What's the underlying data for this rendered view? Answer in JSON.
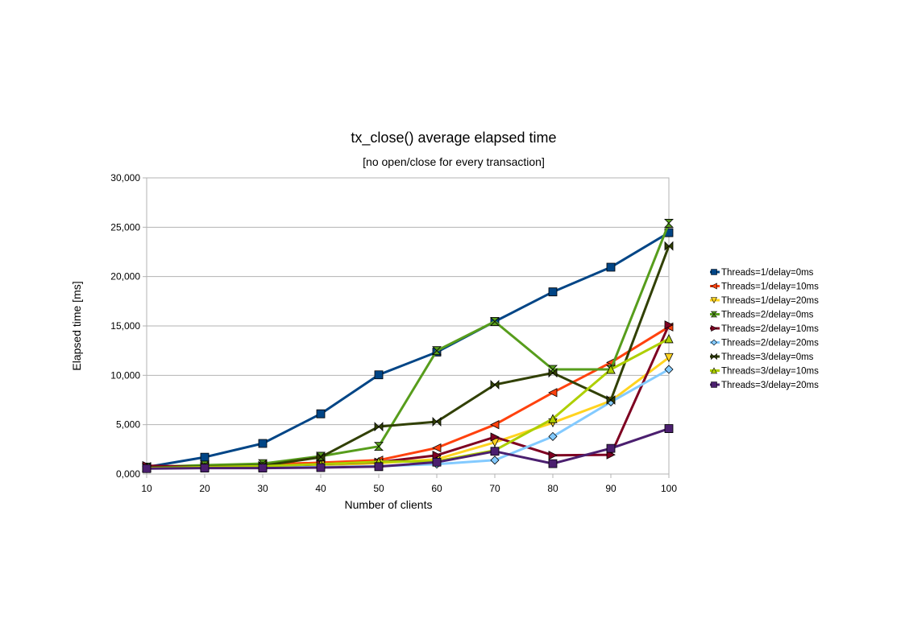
{
  "chart_data": {
    "type": "line",
    "title": "tx_close() average elapsed time",
    "subtitle": "[no open/close for every transaction]",
    "xlabel": "Number of clients",
    "ylabel": "Elapsed time [ms]",
    "ylim": [
      0,
      30000
    ],
    "grid": true,
    "legend_position": "right",
    "x": [
      10,
      20,
      30,
      40,
      50,
      60,
      70,
      80,
      90,
      100
    ],
    "x_tick_labels": [
      "10",
      "20",
      "30",
      "40",
      "50",
      "60",
      "70",
      "80",
      "90",
      "100"
    ],
    "y_ticks": [
      0,
      5000,
      10000,
      15000,
      20000,
      25000,
      30000
    ],
    "y_tick_labels": [
      "0,000",
      "5,000",
      "10,000",
      "15,000",
      "20,000",
      "25,000",
      "30,000"
    ],
    "series": [
      {
        "name": "Threads=1/delay=0ms",
        "color": "#004586",
        "marker": "square",
        "values": [
          700,
          1700,
          3100,
          6100,
          10050,
          12350,
          15450,
          18450,
          20950,
          24450
        ]
      },
      {
        "name": "Threads=1/delay=10ms",
        "color": "#ff420e",
        "marker": "triangle-left",
        "values": [
          750,
          850,
          950,
          1150,
          1400,
          2650,
          5000,
          8250,
          11300,
          14900
        ]
      },
      {
        "name": "Threads=1/delay=20ms",
        "color": "#ffd320",
        "marker": "triangle-down",
        "values": [
          700,
          750,
          800,
          900,
          1100,
          1500,
          3200,
          5200,
          7400,
          11800
        ]
      },
      {
        "name": "Threads=2/delay=0ms",
        "color": "#579d1c",
        "marker": "hourglass",
        "values": [
          700,
          900,
          1050,
          1800,
          2800,
          12500,
          15450,
          10600,
          10600,
          25400
        ]
      },
      {
        "name": "Threads=2/delay=10ms",
        "color": "#7e0021",
        "marker": "triangle-right",
        "values": [
          850,
          700,
          750,
          1000,
          1200,
          1900,
          3750,
          1900,
          1950,
          15100
        ]
      },
      {
        "name": "Threads=2/delay=20ms",
        "color": "#83caff",
        "marker": "diamond",
        "values": [
          600,
          650,
          650,
          700,
          800,
          1000,
          1400,
          3800,
          7300,
          10600
        ]
      },
      {
        "name": "Threads=3/delay=0ms",
        "color": "#314004",
        "marker": "bowtie",
        "values": [
          650,
          750,
          850,
          1700,
          4800,
          5300,
          9050,
          10250,
          7500,
          23100
        ]
      },
      {
        "name": "Threads=3/delay=10ms",
        "color": "#aecf00",
        "marker": "triangle-up",
        "values": [
          600,
          700,
          800,
          1000,
          1250,
          1300,
          2400,
          5600,
          10600,
          13700
        ]
      },
      {
        "name": "Threads=3/delay=20ms",
        "color": "#4b1f6f",
        "marker": "square",
        "values": [
          550,
          600,
          600,
          650,
          750,
          1200,
          2300,
          1050,
          2600,
          4600
        ]
      }
    ]
  }
}
